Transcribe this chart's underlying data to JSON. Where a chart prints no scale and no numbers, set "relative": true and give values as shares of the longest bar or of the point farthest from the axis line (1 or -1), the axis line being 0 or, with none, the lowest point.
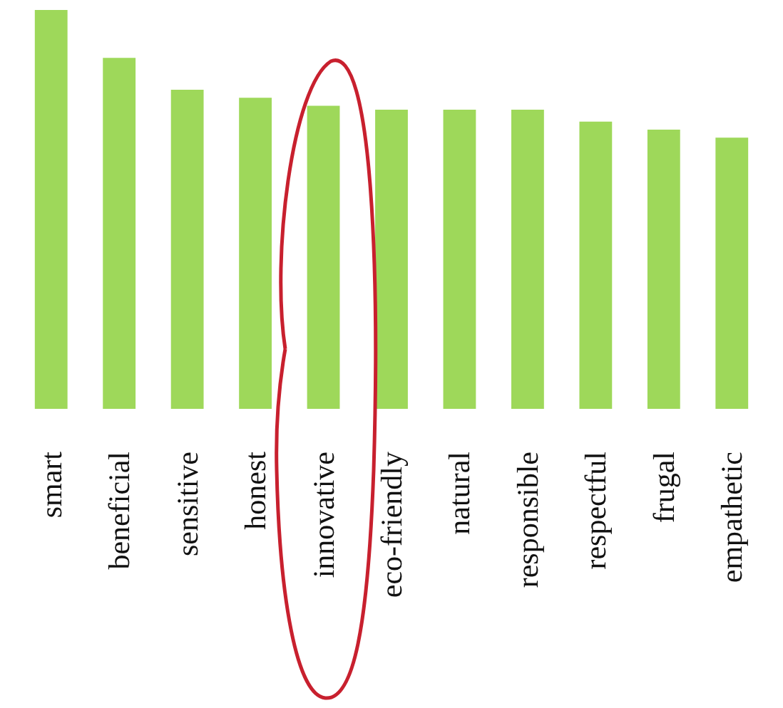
{
  "chart_data": {
    "type": "bar",
    "relative": true,
    "categories": [
      "smart",
      "beneficial",
      "sensitive",
      "honest",
      "innovative",
      "eco-friendly",
      "natural",
      "responsible",
      "respectful",
      "frugal",
      "empathetic"
    ],
    "values": [
      1,
      0.88,
      0.8,
      0.78,
      0.76,
      0.75,
      0.75,
      0.75,
      0.72,
      0.7,
      0.68
    ],
    "color": "#9ed85a"
  }
}
